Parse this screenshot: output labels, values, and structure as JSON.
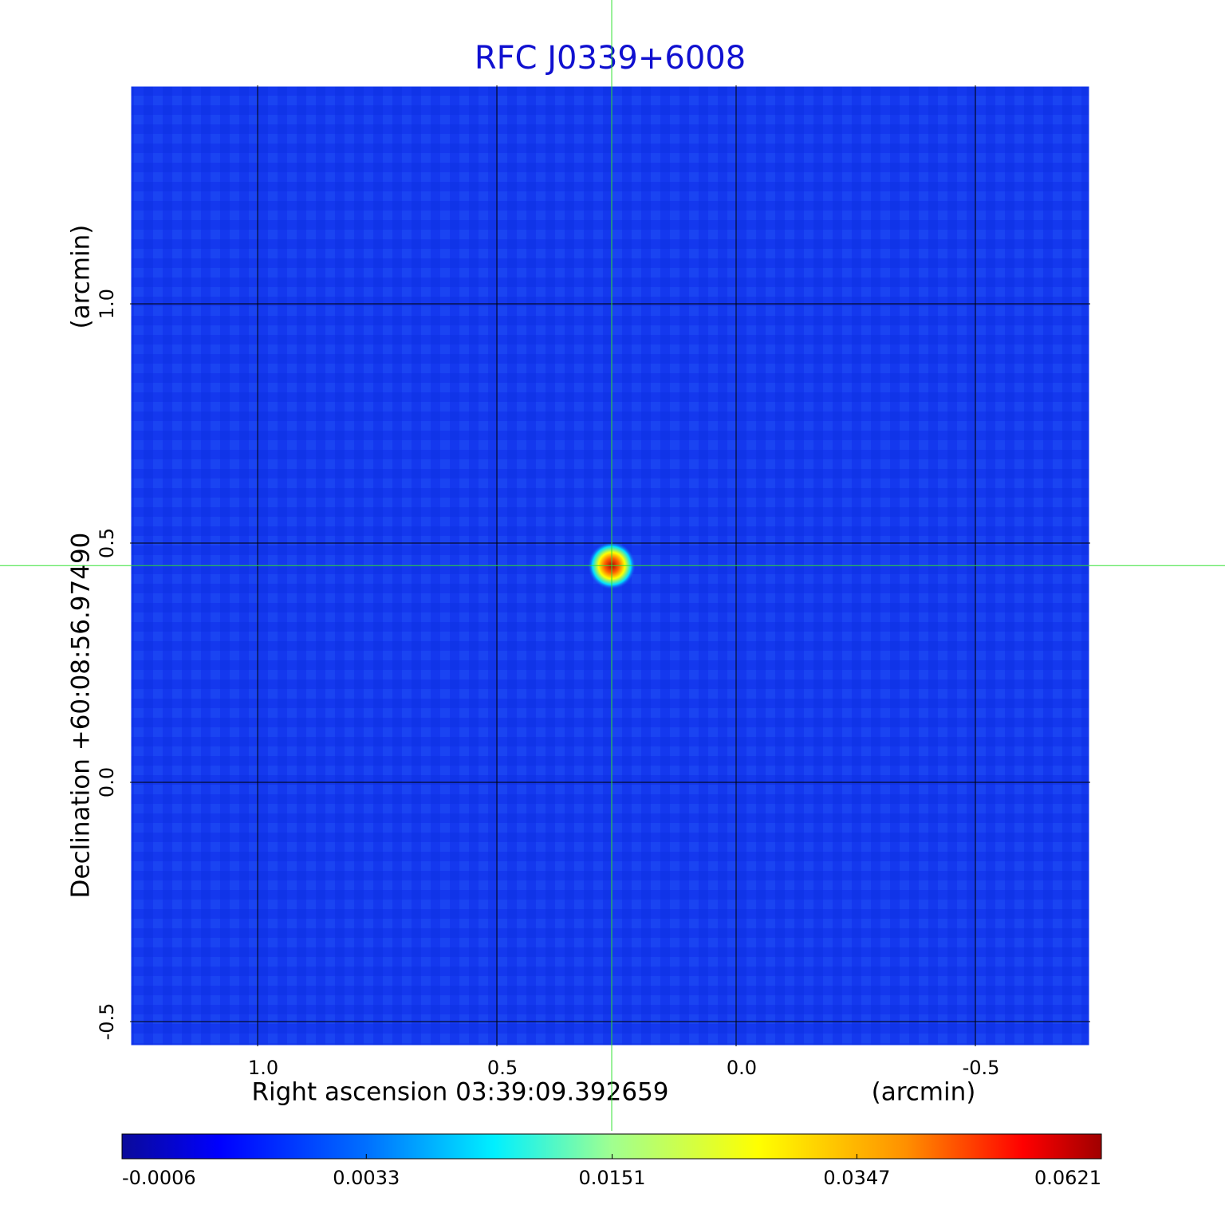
{
  "chart_data": {
    "type": "image",
    "title": "RFC J0339+6008",
    "x_label": "Right ascension  03:39:09.392659",
    "x_unit": "(arcmin)",
    "y_label": "Declination  +60:08:56.97490",
    "y_unit": "(arcmin)",
    "xlim": [
      1.2667,
      -0.74
    ],
    "ylim": [
      -0.5517,
      1.4567
    ],
    "xticks": [
      {
        "value": 1,
        "label": "1.0"
      },
      0.5,
      {
        "value": 0,
        "label": "0.0"
      },
      -0.5
    ],
    "yticks": [
      {
        "value": 1,
        "label": "1.0"
      },
      0.5,
      {
        "value": 0,
        "label": "0.0"
      },
      -0.5
    ],
    "grid": true,
    "source": {
      "x": 0.26,
      "y": 0.453
    },
    "colorbar": {
      "scale": "sqrt",
      "lim": [
        -0.0006,
        0.0621
      ],
      "ticks": [
        -0.0006,
        0.0033,
        0.0151,
        0.0347,
        0.0621
      ]
    }
  }
}
